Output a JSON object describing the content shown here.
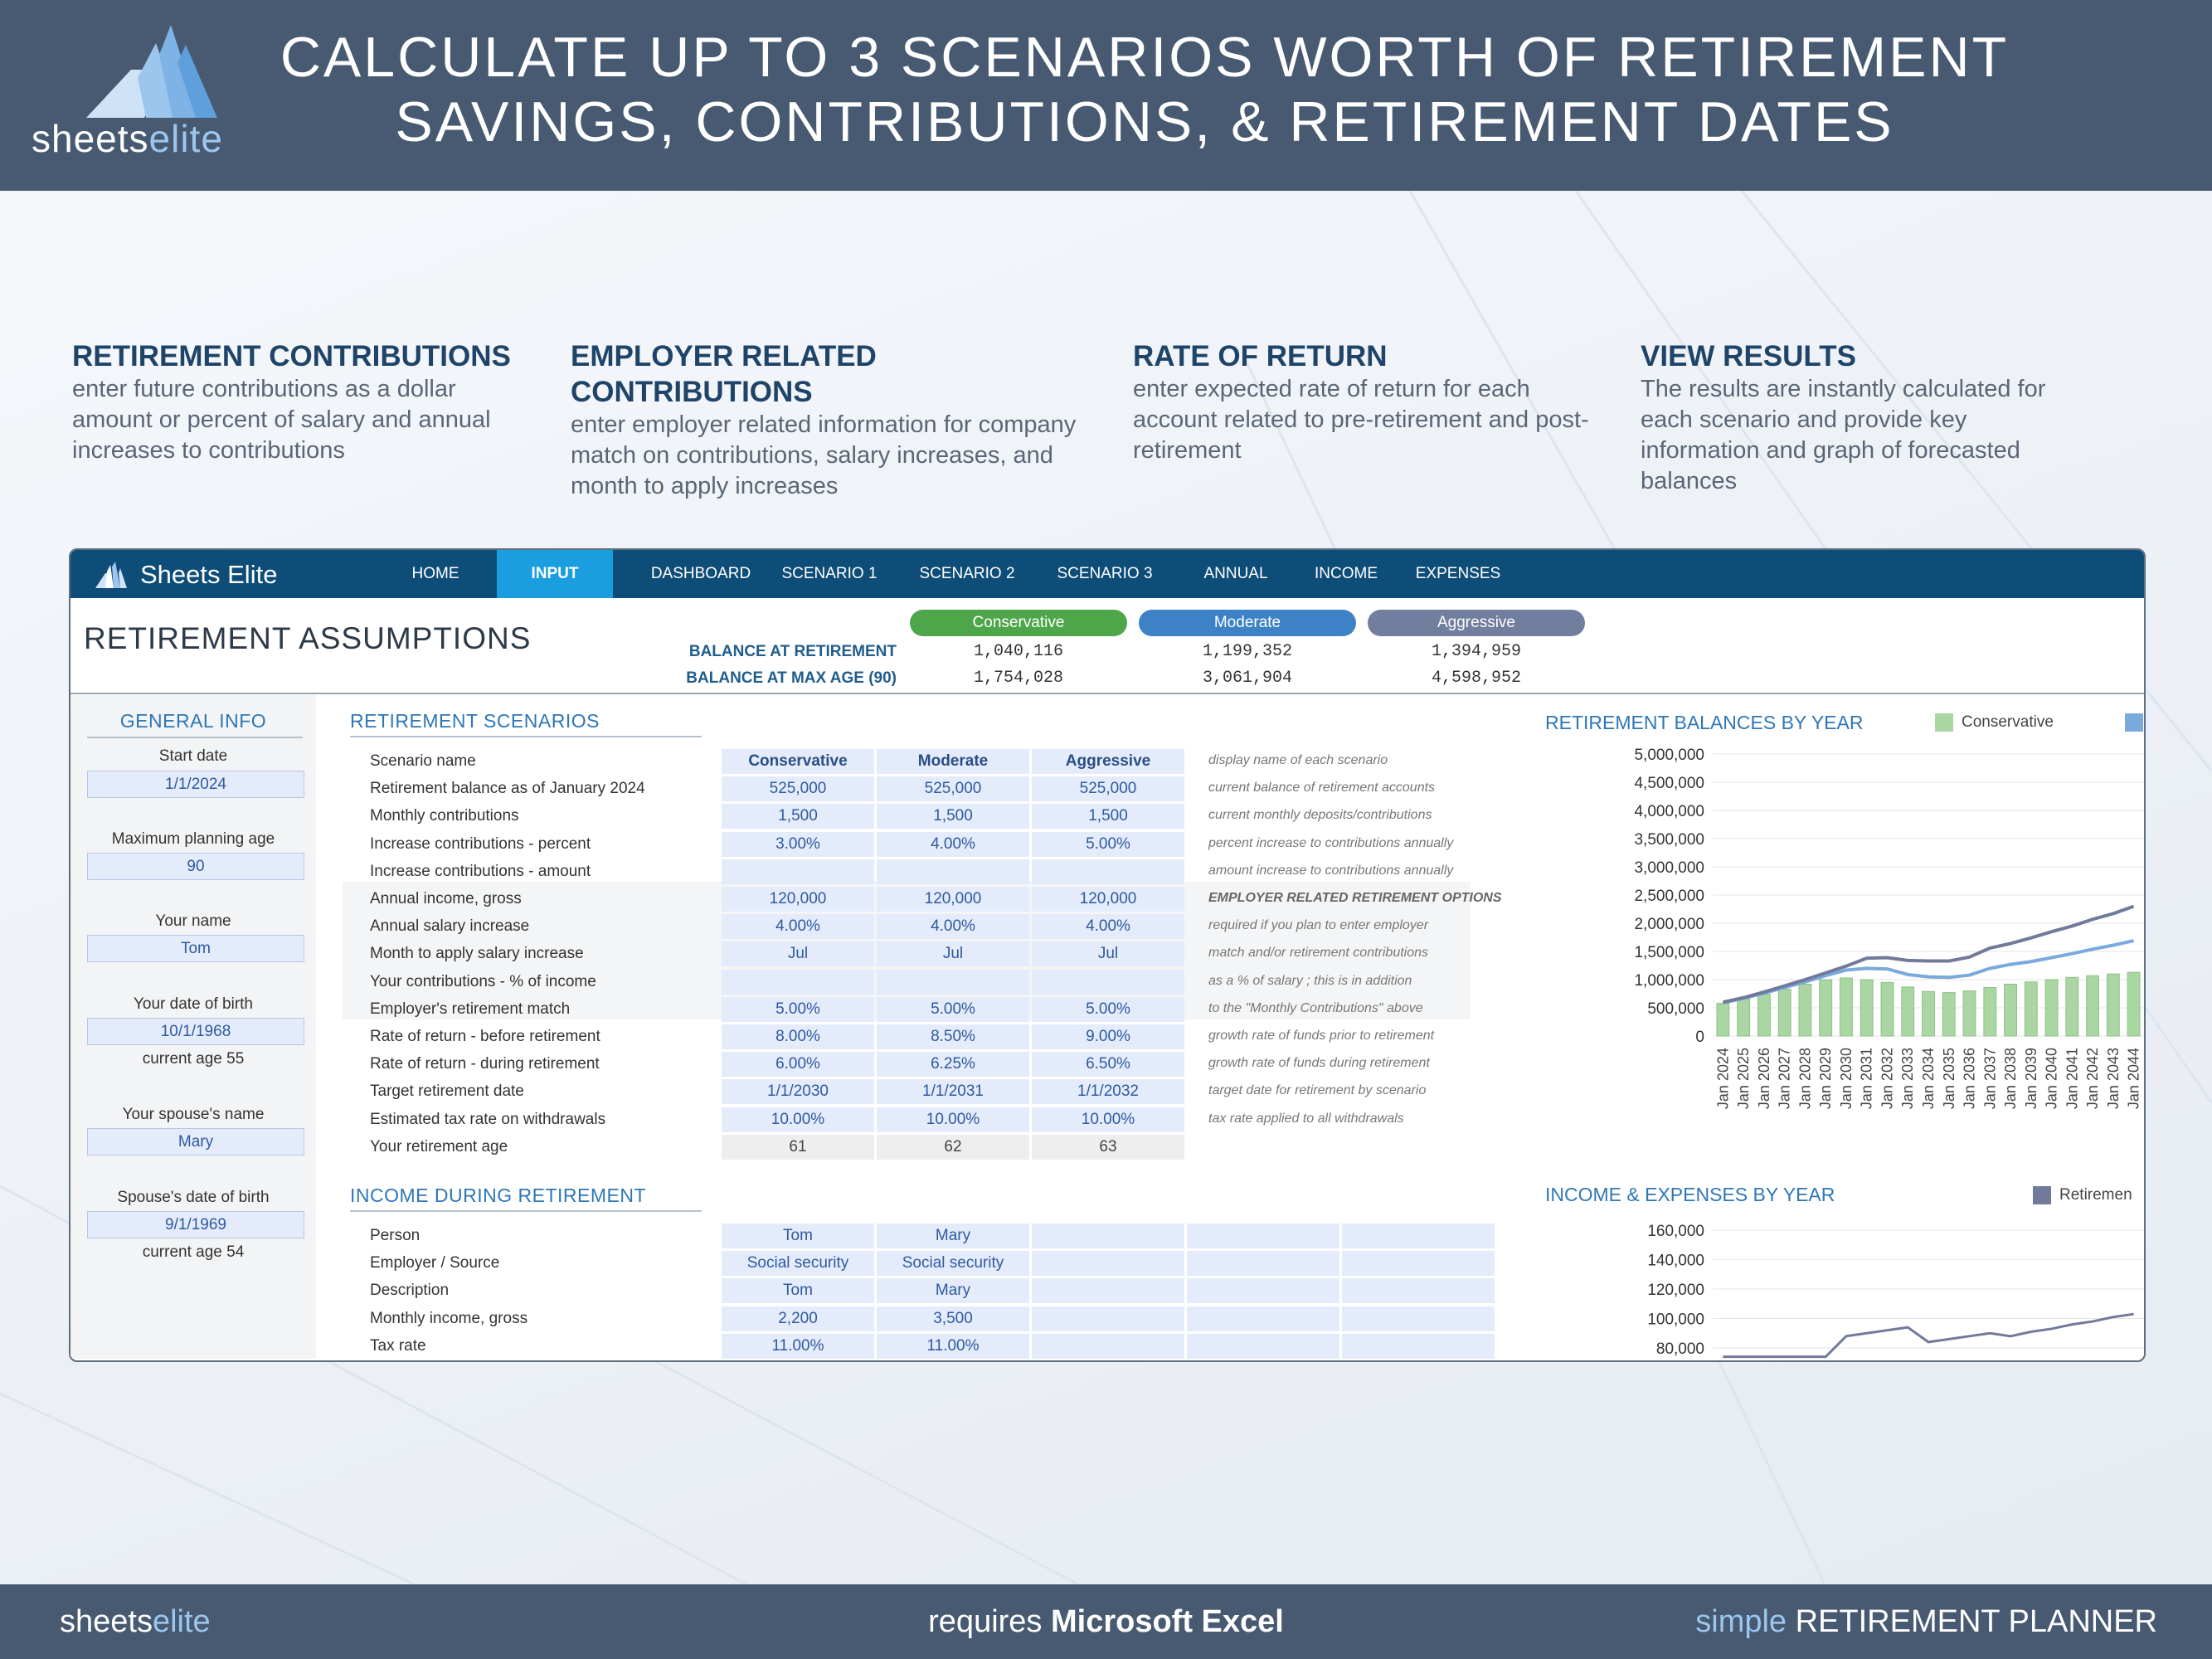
{
  "brand": {
    "logo_plain": "sheets",
    "logo_accent": "elite"
  },
  "headline": {
    "line1": "CALCULATE UP TO 3 SCENARIOS WORTH OF RETIREMENT",
    "line2": "SAVINGS, CONTRIBUTIONS, & RETIREMENT DATES"
  },
  "features": [
    {
      "title": "RETIREMENT CONTRIBUTIONS",
      "text": "enter future contributions as a dollar amount or percent of salary and annual increases to contributions"
    },
    {
      "title": "EMPLOYER RELATED CONTRIBUTIONS",
      "text": "enter employer related information for company match on contributions, salary increases, and month to apply increases"
    },
    {
      "title": "RATE OF RETURN",
      "text": "enter expected rate of return for each account related to pre-retirement and post-retirement"
    },
    {
      "title": "VIEW RESULTS",
      "text": "The results are instantly calculated for each scenario and provide key information and graph of forecasted balances"
    }
  ],
  "app": {
    "brand": "Sheets Elite",
    "nav": [
      "HOME",
      "INPUT",
      "DASHBOARD",
      "SCENARIO 1",
      "SCENARIO 2",
      "SCENARIO 3",
      "ANNUAL",
      "INCOME",
      "EXPENSES"
    ],
    "active_tab": "INPUT",
    "title": "RETIREMENT ASSUMPTIONS",
    "scenario_pills": [
      {
        "label": "Conservative",
        "color": "#4ea64a"
      },
      {
        "label": "Moderate",
        "color": "#3d82c6"
      },
      {
        "label": "Aggressive",
        "color": "#717e9e"
      }
    ],
    "balances": [
      {
        "label": "BALANCE AT RETIREMENT",
        "values": [
          "1,040,116",
          "1,199,352",
          "1,394,959"
        ]
      },
      {
        "label": "BALANCE AT MAX AGE (90)",
        "values": [
          "1,754,028",
          "3,061,904",
          "4,598,952"
        ]
      }
    ],
    "general_info": {
      "title": "GENERAL INFO",
      "fields": [
        {
          "label": "Start date",
          "value": "1/1/2024",
          "note": ""
        },
        {
          "label": "Maximum planning age",
          "value": "90",
          "note": ""
        },
        {
          "label": "Your name",
          "value": "Tom",
          "note": ""
        },
        {
          "label": "Your date of birth",
          "value": "10/1/1968",
          "note": "current age 55"
        },
        {
          "label": "Your spouse's name",
          "value": "Mary",
          "note": ""
        },
        {
          "label": "Spouse's date of birth",
          "value": "9/1/1969",
          "note": "current age 54"
        }
      ]
    },
    "scenarios": {
      "title": "RETIREMENT SCENARIOS",
      "rows": [
        {
          "label": "Scenario name",
          "values": [
            "Conservative",
            "Moderate",
            "Aggressive"
          ],
          "note": "display name of each scenario"
        },
        {
          "label": "Retirement balance as of  January 2024",
          "values": [
            "525,000",
            "525,000",
            "525,000"
          ],
          "note": "current balance of retirement accounts"
        },
        {
          "label": "Monthly contributions",
          "values": [
            "1,500",
            "1,500",
            "1,500"
          ],
          "note": "current monthly deposits/contributions"
        },
        {
          "label": "Increase contributions - percent",
          "values": [
            "3.00%",
            "4.00%",
            "5.00%"
          ],
          "note": "percent increase to contributions annually"
        },
        {
          "label": "Increase contributions - amount",
          "values": [
            "",
            "",
            ""
          ],
          "note": "amount increase to contributions annually"
        },
        {
          "label": "Annual income, gross",
          "values": [
            "120,000",
            "120,000",
            "120,000"
          ],
          "note": "EMPLOYER RELATED RETIREMENT OPTIONS"
        },
        {
          "label": "Annual salary increase",
          "values": [
            "4.00%",
            "4.00%",
            "4.00%"
          ],
          "note": "required if you plan to enter employer"
        },
        {
          "label": "Month to apply salary increase",
          "values": [
            "Jul",
            "Jul",
            "Jul"
          ],
          "note": "match and/or retirement contributions"
        },
        {
          "label": "Your contributions - % of income",
          "values": [
            "",
            "",
            ""
          ],
          "note": " as a % of salary ; this is in addition"
        },
        {
          "label": "Employer's retirement match",
          "values": [
            "5.00%",
            "5.00%",
            "5.00%"
          ],
          "note": " to the \"Monthly Contributions\" above"
        },
        {
          "label": "Rate of return - before retirement",
          "values": [
            "8.00%",
            "8.50%",
            "9.00%"
          ],
          "note": "growth rate of funds prior to retirement"
        },
        {
          "label": "Rate of return - during retirement",
          "values": [
            "6.00%",
            "6.25%",
            "6.50%"
          ],
          "note": "growth rate of funds during retirement"
        },
        {
          "label": "Target retirement date",
          "values": [
            "1/1/2030",
            "1/1/2031",
            "1/1/2032"
          ],
          "note": "target date for retirement by scenario"
        },
        {
          "label": "Estimated tax rate on withdrawals",
          "values": [
            "10.00%",
            "10.00%",
            "10.00%"
          ],
          "note": "tax rate applied to all withdrawals"
        },
        {
          "label": "Your retirement age",
          "values": [
            "61",
            "62",
            "63"
          ],
          "note": ""
        }
      ]
    },
    "income": {
      "title": "INCOME DURING RETIREMENT",
      "rows": [
        {
          "label": "Person",
          "values": [
            "Tom",
            "Mary",
            "",
            "",
            ""
          ]
        },
        {
          "label": "Employer / Source",
          "values": [
            "Social security",
            "Social security",
            "",
            "",
            ""
          ]
        },
        {
          "label": "Description",
          "values": [
            "Tom",
            "Mary",
            "",
            "",
            ""
          ]
        },
        {
          "label": "Monthly income, gross",
          "values": [
            "2,200",
            "3,500",
            "",
            "",
            ""
          ]
        },
        {
          "label": "Tax rate",
          "values": [
            "11.00%",
            "11.00%",
            "",
            "",
            ""
          ]
        }
      ]
    }
  },
  "chart_data": [
    {
      "type": "bar",
      "title": "RETIREMENT BALANCES BY YEAR",
      "legend": [
        "Conservative"
      ],
      "categories": [
        "Jan 2024",
        "Jan 2025",
        "Jan 2026",
        "Jan 2027",
        "Jan 2028",
        "Jan 2029",
        "Jan 2030",
        "Jan 2031",
        "Jan 2032",
        "Jan 2033",
        "Jan 2034",
        "Jan 2035",
        "Jan 2036",
        "Jan 2037",
        "Jan 2038",
        "Jan 2039",
        "Jan 2040",
        "Jan 2041",
        "Jan 2042",
        "Jan 2043",
        "Jan 2044"
      ],
      "yticks": [
        "5,000,000",
        "4,500,000",
        "4,000,000",
        "3,500,000",
        "3,000,000",
        "2,500,000",
        "2,000,000",
        "1,500,000",
        "1,000,000",
        "500,000",
        "0"
      ],
      "ylim": [
        0,
        5000000
      ],
      "series": [
        {
          "name": "Conservative",
          "kind": "bar",
          "color": "#a9d6a2",
          "values": [
            580000,
            660000,
            740000,
            830000,
            920000,
            1000000,
            1030000,
            1000000,
            950000,
            870000,
            790000,
            770000,
            800000,
            860000,
            920000,
            960000,
            1000000,
            1040000,
            1070000,
            1100000,
            1130000
          ]
        },
        {
          "kind": "line",
          "color": "#7aa9dc",
          "values": [
            590000,
            670000,
            760000,
            860000,
            960000,
            1070000,
            1170000,
            1200000,
            1190000,
            1090000,
            1050000,
            1040000,
            1080000,
            1200000,
            1270000,
            1320000,
            1390000,
            1460000,
            1540000,
            1610000,
            1690000
          ]
        },
        {
          "kind": "line",
          "color": "#717a9a",
          "values": [
            600000,
            680000,
            780000,
            890000,
            1000000,
            1120000,
            1240000,
            1380000,
            1390000,
            1340000,
            1330000,
            1330000,
            1400000,
            1560000,
            1640000,
            1740000,
            1850000,
            1950000,
            2070000,
            2170000,
            2300000
          ]
        }
      ]
    },
    {
      "type": "line",
      "title": "INCOME & EXPENSES BY YEAR",
      "legend": [
        "Retiremen"
      ],
      "yticks": [
        "160,000",
        "140,000",
        "120,000",
        "100,000",
        "80,000"
      ],
      "ylim": [
        80000,
        160000
      ],
      "series": [
        {
          "color": "#717a9a",
          "values": [
            74000,
            74000,
            74000,
            74000,
            74000,
            74000,
            88000,
            90000,
            92000,
            94000,
            84000,
            86000,
            88000,
            90000,
            88000,
            91000,
            93000,
            96000,
            98000,
            101000,
            103000
          ]
        }
      ]
    }
  ],
  "footer": {
    "left_plain": "sheets",
    "left_accent": "elite",
    "mid_plain": "requires ",
    "mid_bold": "Microsoft Excel",
    "right_accent": "simple",
    "right_plain": "RETIREMENT PLANNER"
  }
}
